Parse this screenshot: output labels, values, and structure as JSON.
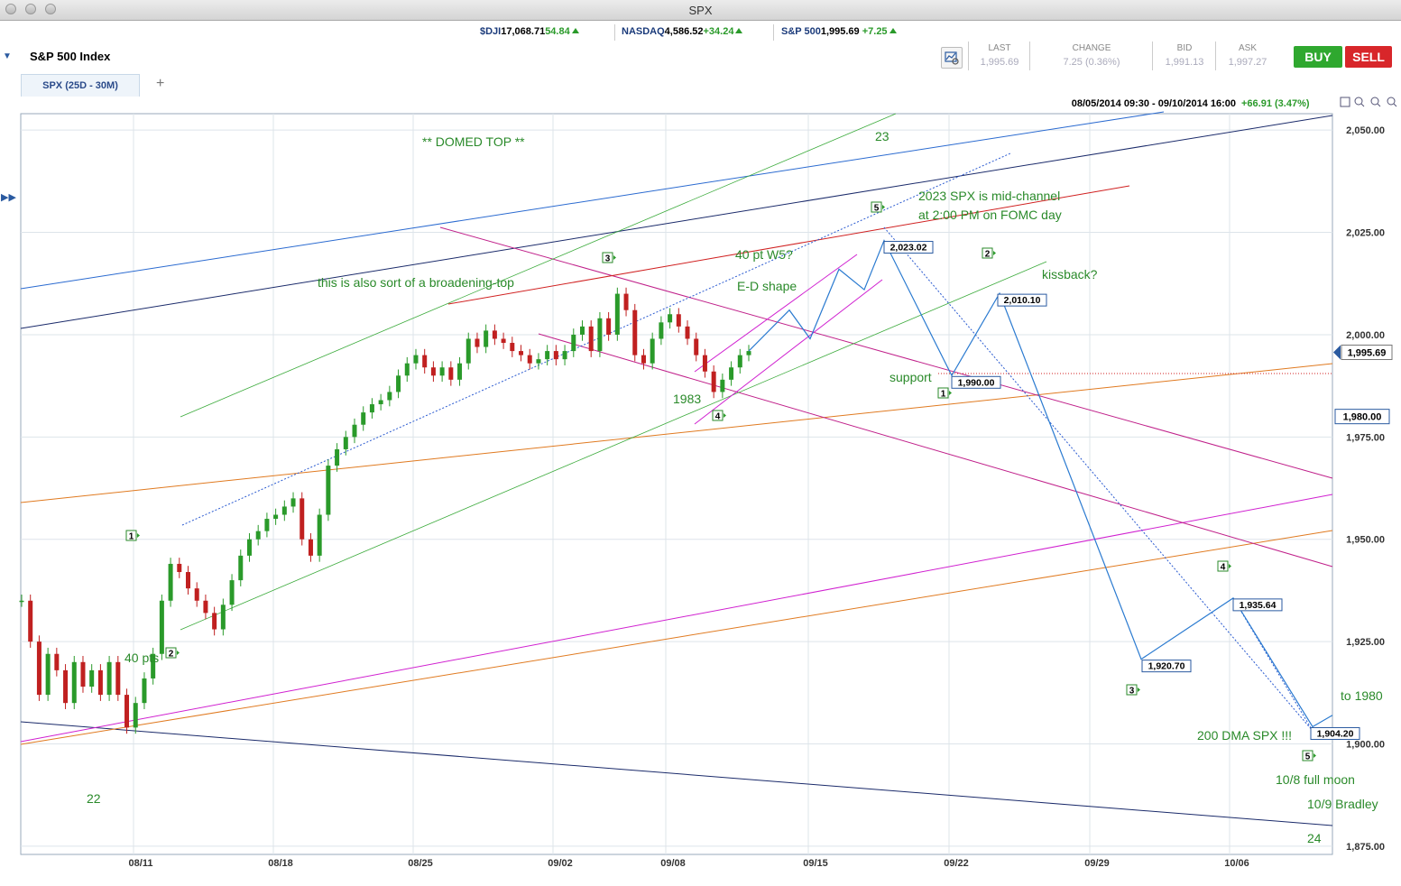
{
  "window": {
    "title": "SPX"
  },
  "tickers": [
    {
      "symbol": "$DJI",
      "value": "17,068.71",
      "change": "54.84"
    },
    {
      "symbol": "NASDAQ",
      "value": "4,586.52",
      "change": "+34.24"
    },
    {
      "symbol": "S&P 500",
      "value": "1,995.69",
      "change": "+7.25"
    }
  ],
  "instrument": {
    "name": "S&P 500 Index"
  },
  "quote": {
    "last_label": "LAST",
    "last": "1,995.69",
    "change_label": "CHANGE",
    "change": "7.25 (0.36%)",
    "bid_label": "BID",
    "bid": "1,991.13",
    "ask_label": "ASK",
    "ask": "1,997.27"
  },
  "buttons": {
    "buy": "BUY",
    "sell": "SELL"
  },
  "tabs": [
    {
      "label": "SPX (25D - 30M)"
    }
  ],
  "add_tab": "+",
  "colors": {
    "buy": "#2fa82f",
    "sell": "#d8262a",
    "up_candle": "#2a9a2a",
    "down_candle": "#c02020",
    "annotation": "#2a8a2a"
  },
  "chart_data": {
    "type": "candlestick",
    "range_label": "08/05/2014 09:30 - 09/10/2014 16:00",
    "range_change": "+66.91 (3.47%)",
    "y_ticks": [
      "2,050.00",
      "2,025.00",
      "2,000.00",
      "1,975.00",
      "1,950.00",
      "1,925.00",
      "1,900.00",
      "1,875.00"
    ],
    "y_tick_values": [
      2050,
      2025,
      2000,
      1975,
      1950,
      1925,
      1900,
      1875
    ],
    "ylim": [
      1873,
      2054
    ],
    "x_ticks": [
      "08/11",
      "08/18",
      "08/25",
      "09/02",
      "09/08",
      "09/15",
      "09/22",
      "09/29",
      "10/06"
    ],
    "current_price_label": "1,995.69",
    "current_price": 1995.69,
    "price_marker_label": "1,980.00",
    "price_marker": 1980,
    "support_level": 1989,
    "close_path": [
      [
        0,
        1935
      ],
      [
        1,
        1925
      ],
      [
        2,
        1912
      ],
      [
        3,
        1922
      ],
      [
        4,
        1918
      ],
      [
        5,
        1910
      ],
      [
        6,
        1920
      ],
      [
        7,
        1914
      ],
      [
        8,
        1918
      ],
      [
        9,
        1912
      ],
      [
        10,
        1920
      ],
      [
        11,
        1912
      ],
      [
        12,
        1904
      ],
      [
        13,
        1910
      ],
      [
        14,
        1916
      ],
      [
        15,
        1922
      ],
      [
        16,
        1935
      ],
      [
        17,
        1944
      ],
      [
        18,
        1942
      ],
      [
        19,
        1938
      ],
      [
        20,
        1935
      ],
      [
        21,
        1932
      ],
      [
        22,
        1928
      ],
      [
        23,
        1934
      ],
      [
        24,
        1940
      ],
      [
        25,
        1946
      ],
      [
        26,
        1950
      ],
      [
        27,
        1952
      ],
      [
        28,
        1955
      ],
      [
        29,
        1956
      ],
      [
        30,
        1958
      ],
      [
        31,
        1960
      ],
      [
        32,
        1950
      ],
      [
        33,
        1946
      ],
      [
        34,
        1956
      ],
      [
        35,
        1968
      ],
      [
        36,
        1972
      ],
      [
        37,
        1975
      ],
      [
        38,
        1978
      ],
      [
        39,
        1981
      ],
      [
        40,
        1983
      ],
      [
        41,
        1984
      ],
      [
        42,
        1986
      ],
      [
        43,
        1990
      ],
      [
        44,
        1993
      ],
      [
        45,
        1995
      ],
      [
        46,
        1992
      ],
      [
        47,
        1990
      ],
      [
        48,
        1992
      ],
      [
        49,
        1989
      ],
      [
        50,
        1993
      ],
      [
        51,
        1999
      ],
      [
        52,
        1997
      ],
      [
        53,
        2001
      ],
      [
        54,
        1999
      ],
      [
        55,
        1998
      ],
      [
        56,
        1996
      ],
      [
        57,
        1995
      ],
      [
        58,
        1993
      ],
      [
        59,
        1994
      ],
      [
        60,
        1996
      ],
      [
        61,
        1994
      ],
      [
        62,
        1996
      ],
      [
        63,
        2000
      ],
      [
        64,
        2002
      ],
      [
        65,
        1996
      ],
      [
        66,
        2004
      ],
      [
        67,
        2000
      ],
      [
        68,
        2010
      ],
      [
        69,
        2006
      ],
      [
        70,
        1995
      ],
      [
        71,
        1993
      ],
      [
        72,
        1999
      ],
      [
        73,
        2003
      ],
      [
        74,
        2005
      ],
      [
        75,
        2002
      ],
      [
        76,
        1999
      ],
      [
        77,
        1995
      ],
      [
        78,
        1991
      ],
      [
        79,
        1986
      ],
      [
        80,
        1989
      ],
      [
        81,
        1992
      ],
      [
        82,
        1995
      ],
      [
        83,
        1996
      ]
    ],
    "projection_path": [
      [
        "2014-09-10",
        1996
      ],
      [
        "2014-09-12",
        2006
      ],
      [
        "2014-09-15",
        1999
      ],
      [
        "2014-09-17",
        2016
      ],
      [
        "2014-09-18",
        2011
      ],
      [
        "2014-09-19",
        2023.02
      ],
      [
        "2014-09-22",
        1990
      ],
      [
        "2014-09-25",
        2010.1
      ],
      [
        "2014-10-01",
        1920.7
      ],
      [
        "2014-10-06",
        1935.64
      ],
      [
        "2014-10-09",
        1904.2
      ],
      [
        "2014-10-10",
        1907
      ]
    ],
    "price_labels": [
      {
        "text": "2,023.02",
        "value": 2023.02
      },
      {
        "text": "2,010.10",
        "value": 2010.1
      },
      {
        "text": "1,990.00",
        "value": 1990
      },
      {
        "text": "1,920.70",
        "value": 1920.7
      },
      {
        "text": "1,935.64",
        "value": 1935.64
      },
      {
        "text": "1,904.20",
        "value": 1904.2
      }
    ],
    "wave_labels": [
      "1",
      "2",
      "3",
      "4",
      "5",
      "1",
      "2",
      "3",
      "4",
      "5"
    ],
    "annotations": [
      "** DOMED TOP **",
      "23",
      "2023 SPX is mid-channel",
      "at 2:00 PM on FOMC day",
      "40 pt W5?",
      "E-D shape",
      "kissback?",
      "this is also sort of a broadening-top",
      "support",
      "1983",
      "40 pts",
      "22",
      "to 1980",
      "200 DMA SPX !!!",
      "10/8 full moon",
      "10/9 Bradley",
      "24"
    ]
  }
}
